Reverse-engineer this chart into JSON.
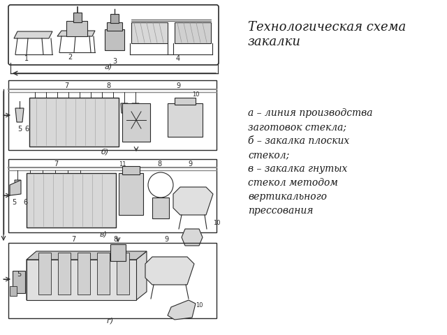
{
  "title": "Технологическая схема\nзакалки",
  "title_fontsize": 13,
  "description_text": "а – линия производства\nзаготовок стекла;\nб – закалка плоских\nстекол;\nв – закалка гнутых\nстекол методом\nвертикального\nпрессования",
  "description_fontsize": 10,
  "bg_color": "#ffffff",
  "text_color": "#1a1a1a",
  "dc": "#2a2a2a",
  "label_a": "а)",
  "label_b": "б)",
  "label_v": "в)",
  "label_g": "г)"
}
